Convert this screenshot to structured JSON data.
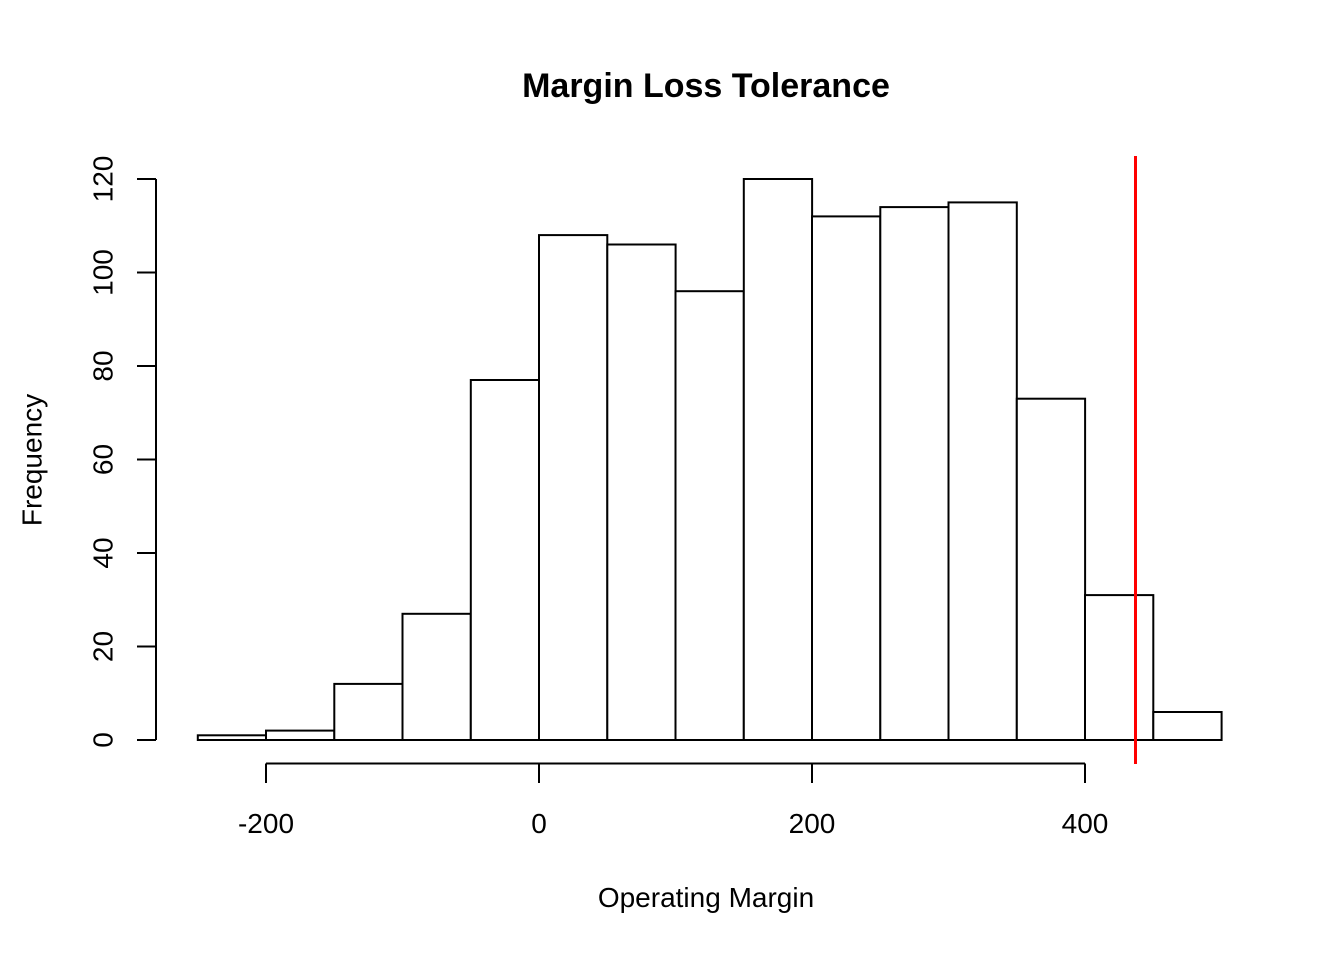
{
  "figure": {
    "background": "#ffffff"
  },
  "chart_data": {
    "type": "bar",
    "subtype": "histogram",
    "title": "Margin Loss Tolerance",
    "xlabel": "Operating Margin",
    "ylabel": "Frequency",
    "bin_edges": [
      -250,
      -200,
      -150,
      -100,
      -50,
      0,
      50,
      100,
      150,
      200,
      250,
      300,
      350,
      400,
      450,
      500
    ],
    "counts": [
      1,
      2,
      12,
      27,
      77,
      108,
      106,
      96,
      120,
      112,
      114,
      115,
      73,
      31,
      6
    ],
    "x_ticks": {
      "values": [
        -200,
        0,
        200,
        400
      ],
      "labels": [
        "-200",
        "0",
        "200",
        "400"
      ]
    },
    "y_ticks": {
      "values": [
        0,
        20,
        40,
        60,
        80,
        100,
        120
      ],
      "labels": [
        "0",
        "20",
        "40",
        "60",
        "80",
        "100",
        "120"
      ]
    },
    "xlim": [
      -280,
      530
    ],
    "ylim": [
      0,
      120
    ],
    "grid": false,
    "legend": null,
    "bar_fill": "#ffffff",
    "bar_stroke": "#000000",
    "axis_color": "#000000",
    "vline": {
      "x": 437,
      "color": "#ff0000"
    }
  }
}
